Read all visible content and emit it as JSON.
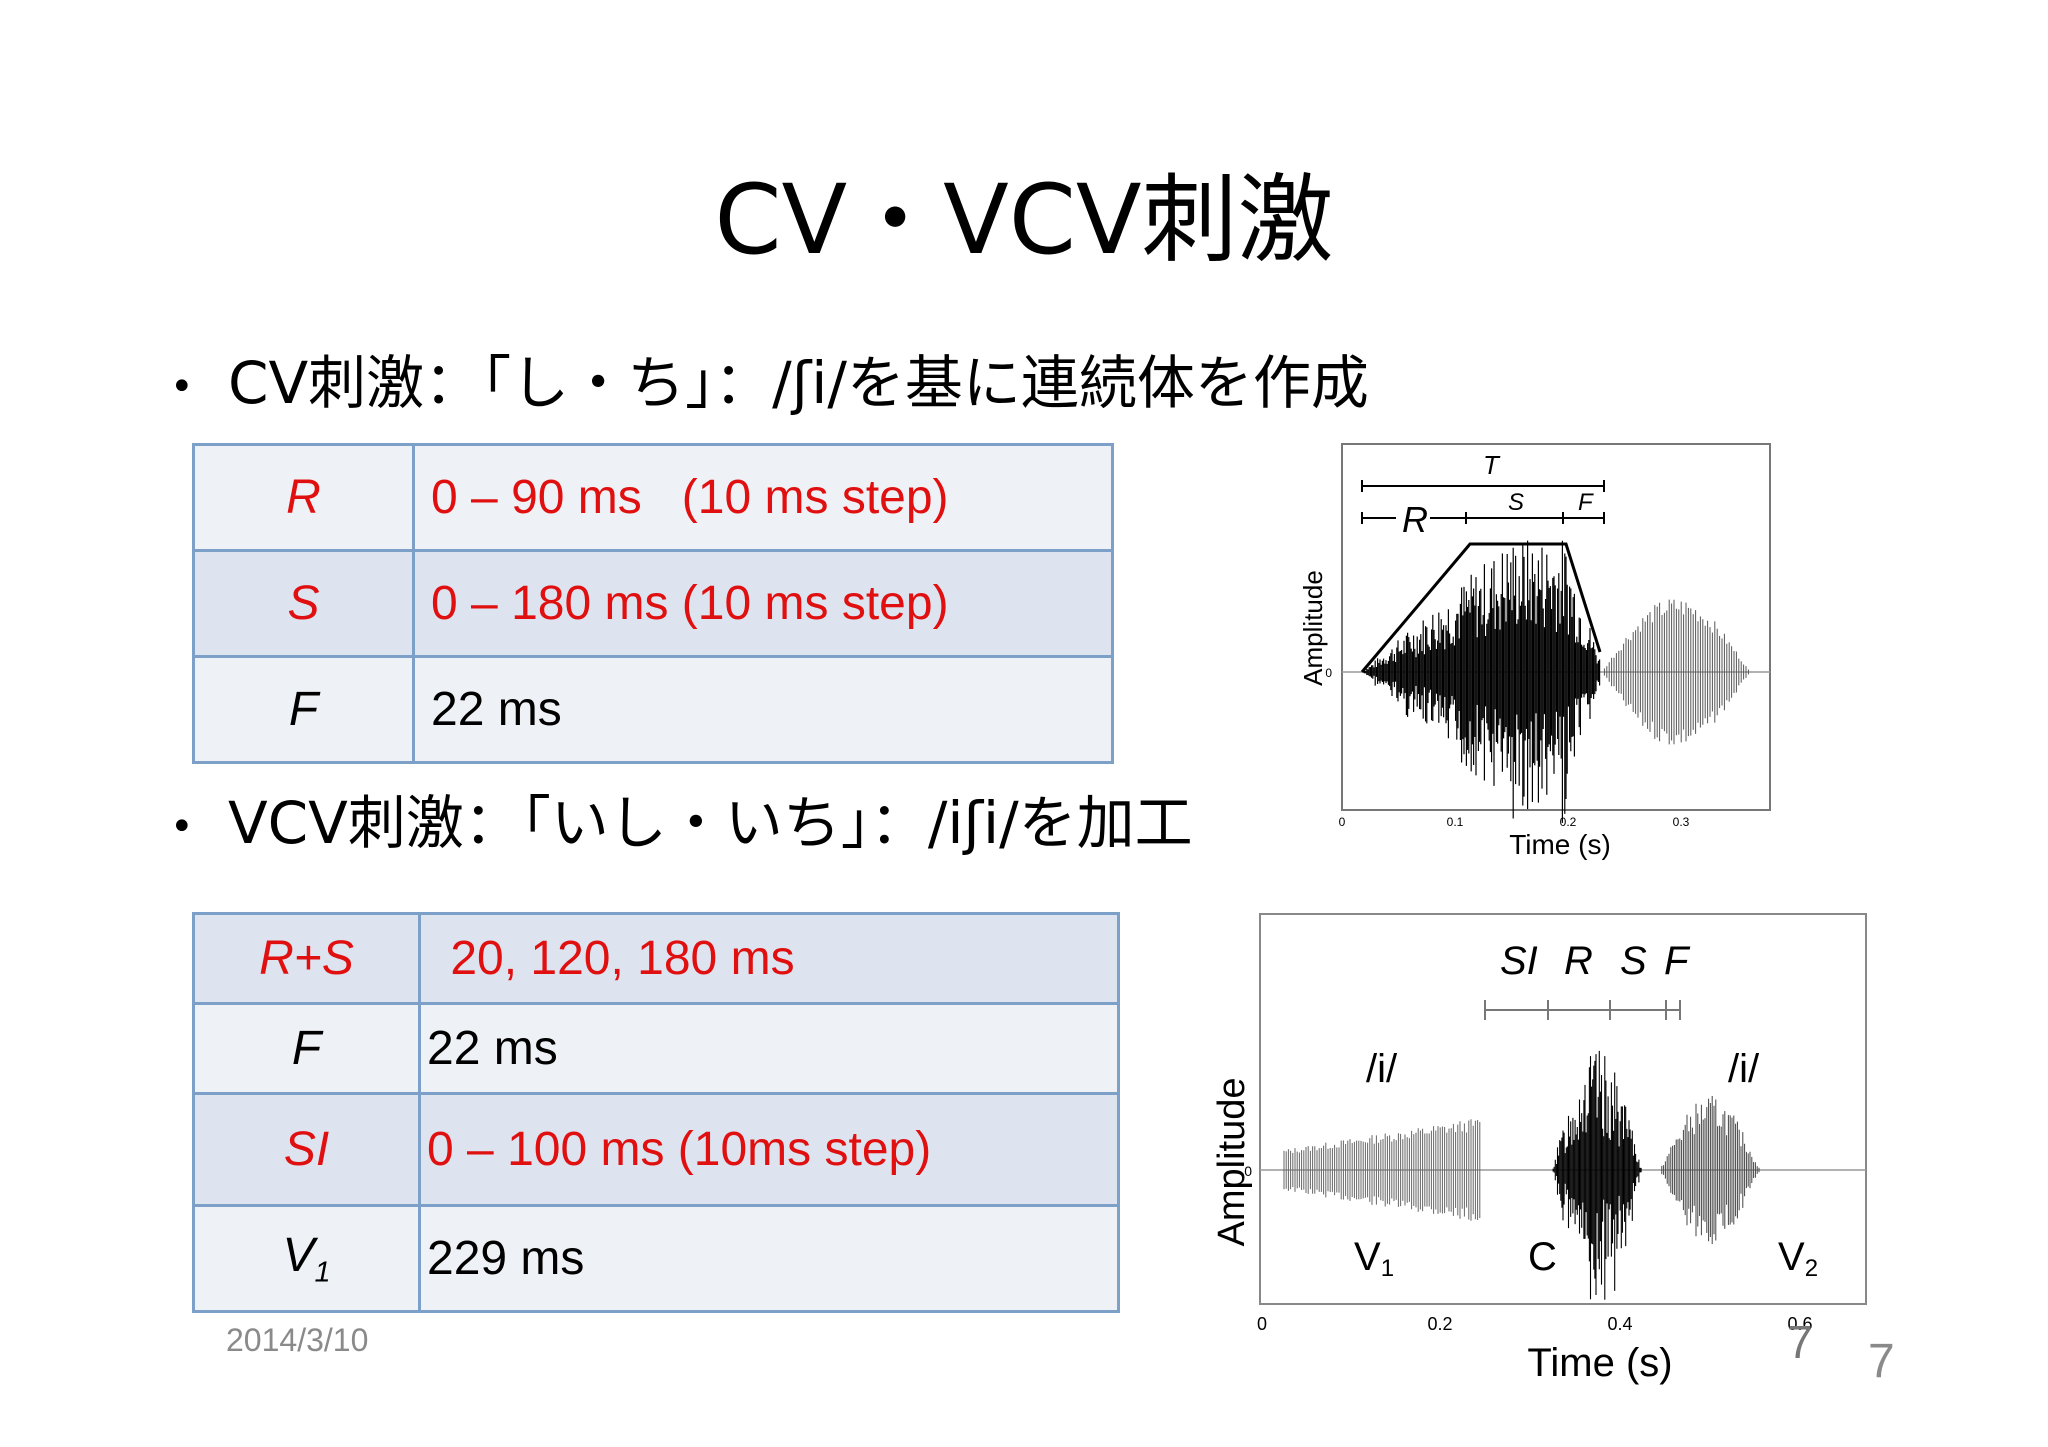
{
  "title": "CV・VCV刺激",
  "bullets": [
    "CV刺激：「し・ち」：/ʃi/を基に連続体を作成",
    "VCV刺激：「いし・いち」：/iʃi/を加工"
  ],
  "bullet_marker": "•",
  "cv_table": [
    {
      "key": "R",
      "value": "0 – 90 ms   (10 ms step)",
      "red": true
    },
    {
      "key": "S",
      "value": "0 – 180 ms (10 ms step)",
      "red": true
    },
    {
      "key": "F",
      "value": "22 ms",
      "red": false
    }
  ],
  "vcv_table": [
    {
      "key": "R+S",
      "value": " 20, 120, 180 ms",
      "red": true
    },
    {
      "key": "F",
      "value": "22 ms",
      "red": false
    },
    {
      "key": "SI",
      "value": "0 – 100 ms (10ms step)",
      "red": true
    },
    {
      "key_main": "V",
      "key_sub": "1",
      "value": "229 ms",
      "red": false
    }
  ],
  "fig1": {
    "ylabel": "Amplitude",
    "xlabel": "Time (s)",
    "yzero": "0",
    "xticks": [
      "0",
      "0.1",
      "0.2",
      "0.3"
    ],
    "labels": {
      "T": "T",
      "R": "R",
      "S": "S",
      "F": "F"
    }
  },
  "fig2": {
    "ylabel": "Amplitude",
    "xlabel": "Time (s)",
    "yzero": "0",
    "xticks": [
      "0",
      "0.2",
      "0.4",
      "0.6"
    ],
    "segment_labels": [
      "SI",
      "R",
      "S",
      "F"
    ],
    "vowel_labels": [
      "/i/",
      "/i/"
    ],
    "phone_labels": {
      "v1": "V",
      "v1_sub": "1",
      "c": "C",
      "v2": "V",
      "v2_sub": "2"
    },
    "overlay_num": "7"
  },
  "footer": {
    "date": "2014/3/10",
    "page": "7"
  },
  "colors": {
    "accent_red": "#e01010",
    "table_border": "#7da0c8",
    "table_alt": "#dde4ef",
    "table_plain": "#eef2f6",
    "footer_gray": "#8a8a8a"
  }
}
